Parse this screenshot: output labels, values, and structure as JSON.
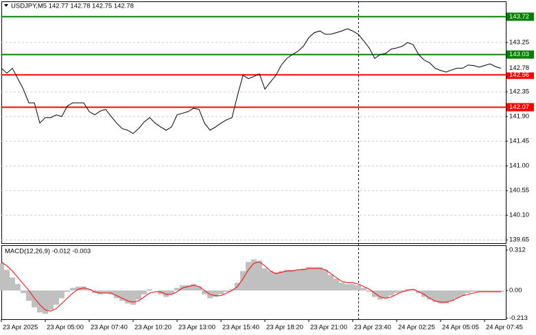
{
  "chart_data": [
    {
      "type": "line",
      "title": "USDJPY,M5  142.77 142.78 142.75 142.78",
      "categories": [
        "23 Apr 2025",
        null,
        null,
        null,
        null,
        null,
        null,
        null,
        "23 Apr 05:00",
        null,
        null,
        null,
        null,
        null,
        null,
        null,
        "23 Apr 07:40",
        null,
        null,
        null,
        null,
        null,
        null,
        null,
        "23 Apr 10:20",
        null,
        null,
        null,
        null,
        null,
        null,
        null,
        "23 Apr 13:00",
        null,
        null,
        null,
        null,
        null,
        null,
        null,
        "23 Apr 15:40",
        null,
        null,
        null,
        null,
        null,
        null,
        null,
        "23 Apr 18:20",
        null,
        null,
        null,
        null,
        null,
        null,
        null,
        "23 Apr 21:00",
        null,
        null,
        null,
        null,
        null,
        null,
        null,
        "23 Apr 23:40",
        null,
        null,
        null,
        null,
        null,
        null,
        null,
        "24 Apr 02:25",
        null,
        null,
        null,
        null,
        null,
        null,
        null,
        "24 Apr 05:05",
        null,
        null,
        null,
        null,
        null,
        null,
        null,
        "24 Apr 07:45",
        null,
        null,
        null
      ],
      "series": [
        {
          "color": "#000000",
          "values": [
            142.78,
            142.69,
            142.78,
            142.59,
            142.4,
            142.15,
            142.15,
            141.78,
            141.88,
            141.88,
            141.93,
            141.9,
            142.09,
            142.15,
            142.15,
            142.15,
            141.99,
            141.93,
            142.0,
            142.03,
            141.9,
            141.78,
            141.68,
            141.65,
            141.59,
            141.68,
            141.8,
            141.88,
            141.78,
            141.71,
            141.65,
            141.71,
            141.93,
            141.96,
            141.99,
            142.05,
            142.03,
            141.78,
            141.65,
            141.71,
            141.78,
            141.84,
            141.88,
            142.28,
            142.65,
            142.59,
            142.63,
            142.68,
            142.4,
            142.53,
            142.65,
            142.84,
            142.96,
            143.03,
            143.09,
            143.18,
            143.34,
            143.43,
            143.46,
            143.4,
            143.4,
            143.43,
            143.46,
            143.5,
            143.46,
            143.4,
            143.28,
            143.15,
            142.96,
            143.03,
            143.05,
            143.13,
            143.15,
            143.18,
            143.25,
            143.21,
            143.03,
            142.93,
            142.88,
            142.78,
            142.74,
            142.71,
            142.75,
            142.78,
            142.78,
            142.84,
            142.83,
            142.8,
            142.83,
            142.86,
            142.81,
            142.78
          ]
        }
      ],
      "levels": [
        {
          "value": 143.72,
          "color": "#008000"
        },
        {
          "value": 143.03,
          "color": "#008000"
        },
        {
          "value": 142.66,
          "color": "#ff0000"
        },
        {
          "value": 142.07,
          "color": "#ff0000"
        }
      ],
      "current_price": 142.78,
      "ylim": [
        139.59,
        144.0
      ],
      "yticks": [
        143.25,
        142.35,
        {
          "value": 141.9,
          "label": "141.90"
        },
        141.45,
        {
          "value": 141.0,
          "label": "141.00"
        },
        140.55,
        {
          "value": 140.1,
          "label": "140.10"
        },
        139.65
      ],
      "grid": true
    },
    {
      "type": "macd",
      "title": "MACD(12,26,9) -0.012 -0.003",
      "histogram": {
        "color": "#c0c0c0",
        "values": [
          0.21,
          0.16,
          0.1,
          0.05,
          -0.02,
          -0.08,
          -0.13,
          -0.17,
          -0.18,
          -0.15,
          -0.11,
          -0.06,
          -0.01,
          0.02,
          0.03,
          0.03,
          0.01,
          -0.02,
          -0.03,
          -0.02,
          -0.03,
          -0.06,
          -0.08,
          -0.1,
          -0.11,
          -0.07,
          -0.03,
          0.01,
          0.0,
          -0.03,
          -0.05,
          -0.03,
          0.02,
          0.04,
          0.04,
          0.05,
          0.03,
          -0.03,
          -0.06,
          -0.05,
          -0.03,
          -0.01,
          0.01,
          0.06,
          0.15,
          0.22,
          0.24,
          0.23,
          0.17,
          0.15,
          0.14,
          0.15,
          0.16,
          0.16,
          0.16,
          0.17,
          0.18,
          0.18,
          0.18,
          0.16,
          0.12,
          0.09,
          0.06,
          0.05,
          0.05,
          0.04,
          0.02,
          -0.01,
          -0.05,
          -0.07,
          -0.06,
          -0.04,
          -0.02,
          -0.01,
          0.01,
          0.01,
          -0.02,
          -0.05,
          -0.07,
          -0.09,
          -0.1,
          -0.1,
          -0.08,
          -0.06,
          -0.04,
          -0.02,
          -0.01,
          -0.01,
          -0.01,
          -0.01,
          -0.01,
          -0.01
        ]
      },
      "signal": {
        "color": "#ff0000",
        "values": [
          0.22,
          0.19,
          0.15,
          0.1,
          0.05,
          0.0,
          -0.06,
          -0.11,
          -0.15,
          -0.16,
          -0.14,
          -0.1,
          -0.06,
          -0.02,
          0.01,
          0.02,
          0.01,
          -0.01,
          -0.02,
          -0.02,
          -0.02,
          -0.04,
          -0.06,
          -0.08,
          -0.09,
          -0.08,
          -0.05,
          -0.02,
          -0.01,
          -0.01,
          -0.03,
          -0.03,
          -0.01,
          0.02,
          0.03,
          0.04,
          0.03,
          0.0,
          -0.03,
          -0.04,
          -0.04,
          -0.02,
          0.0,
          0.03,
          0.09,
          0.16,
          0.21,
          0.22,
          0.19,
          0.15,
          0.13,
          0.14,
          0.15,
          0.15,
          0.16,
          0.16,
          0.17,
          0.17,
          0.17,
          0.16,
          0.13,
          0.1,
          0.07,
          0.06,
          0.06,
          0.05,
          0.03,
          0.01,
          -0.02,
          -0.05,
          -0.06,
          -0.05,
          -0.03,
          -0.01,
          0.0,
          0.01,
          -0.01,
          -0.03,
          -0.06,
          -0.08,
          -0.09,
          -0.09,
          -0.08,
          -0.06,
          -0.04,
          -0.03,
          -0.02,
          -0.01,
          -0.01,
          -0.01,
          -0.01,
          -0.01
        ]
      },
      "ylim": [
        -0.222,
        0.349
      ],
      "yticks": [
        0.312,
        {
          "value": 0,
          "label": "0.00"
        },
        -0.213
      ]
    }
  ]
}
